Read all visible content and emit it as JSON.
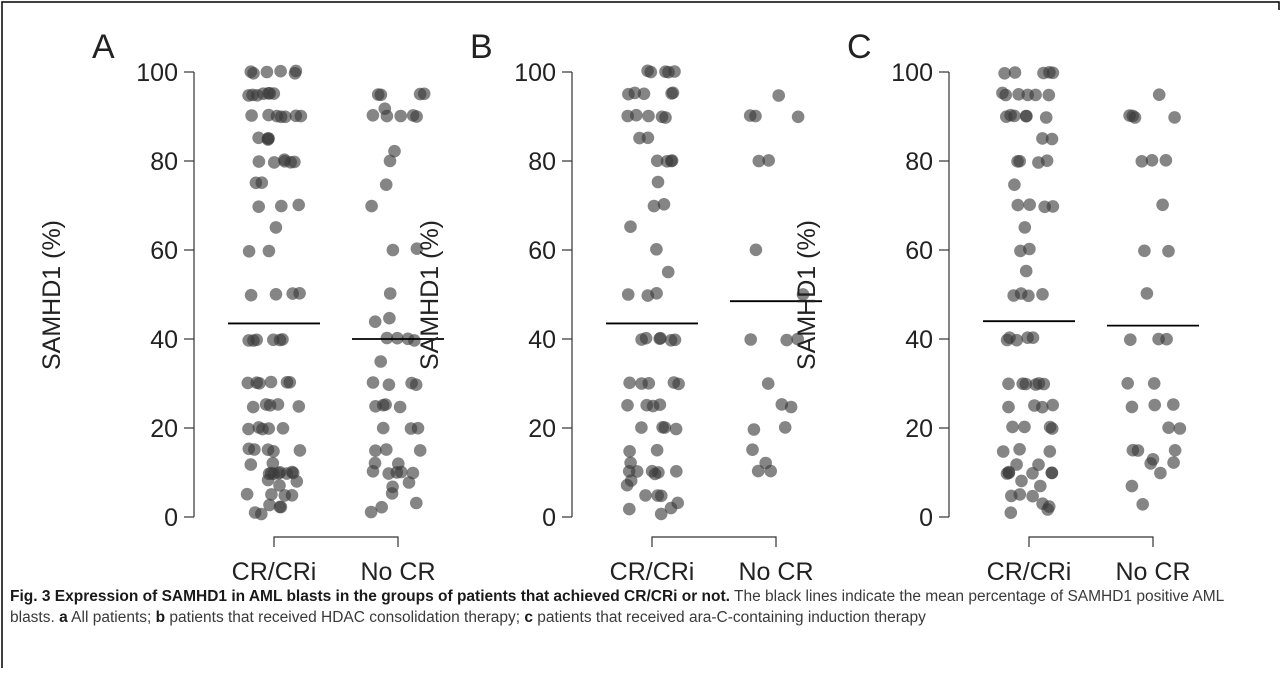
{
  "chart_data": [
    {
      "type": "scatter",
      "panel_label": "A",
      "ylabel": "SAMHD1 (%)",
      "ylim": [
        0,
        100
      ],
      "yticks": [
        "0",
        "20",
        "40",
        "60",
        "80",
        "100"
      ],
      "categories": [
        "CR/CRi",
        "No CR"
      ],
      "means": [
        43.5,
        40
      ],
      "series": [
        {
          "category": "CR/CRi",
          "values": [
            100,
            100,
            100,
            100,
            100,
            100,
            95,
            95,
            95,
            95,
            95,
            95,
            95,
            90,
            90,
            90,
            90,
            90,
            90,
            90,
            85,
            85,
            85,
            85,
            80,
            80,
            80,
            80,
            80,
            80,
            75,
            75,
            70,
            70,
            70,
            65,
            60,
            60,
            50,
            50,
            50,
            50,
            40,
            40,
            40,
            40,
            40,
            40,
            30,
            30,
            30,
            30,
            30,
            30,
            25,
            25,
            25,
            25,
            25,
            20,
            20,
            20,
            20,
            20,
            15,
            15,
            15,
            15,
            15,
            12,
            12,
            10,
            10,
            10,
            10,
            10,
            10,
            10,
            10,
            8,
            8,
            7,
            5,
            5,
            5,
            5,
            3,
            2,
            2,
            1,
            1
          ]
        },
        {
          "category": "No CR",
          "values": [
            95,
            95,
            95,
            95,
            92,
            90,
            90,
            90,
            90,
            90,
            82,
            80,
            75,
            70,
            60,
            60,
            50,
            45,
            44,
            40,
            40,
            40,
            40,
            35,
            30,
            30,
            30,
            30,
            25,
            25,
            25,
            25,
            20,
            20,
            20,
            15,
            15,
            15,
            12,
            12,
            10,
            10,
            10,
            10,
            10,
            8,
            7,
            5,
            3,
            2,
            1
          ]
        }
      ]
    },
    {
      "type": "scatter",
      "panel_label": "B",
      "ylabel": "SAMHD1 (%)",
      "ylim": [
        0,
        100
      ],
      "yticks": [
        "0",
        "20",
        "40",
        "60",
        "80",
        "100"
      ],
      "categories": [
        "CR/CRi",
        "No CR"
      ],
      "means": [
        43.5,
        48.5
      ],
      "series": [
        {
          "category": "CR/CRi",
          "values": [
            100,
            100,
            100,
            100,
            100,
            95,
            95,
            95,
            95,
            95,
            90,
            90,
            90,
            90,
            90,
            85,
            85,
            80,
            80,
            80,
            80,
            75,
            70,
            70,
            65,
            60,
            55,
            50,
            50,
            50,
            40,
            40,
            40,
            40,
            40,
            40,
            30,
            30,
            30,
            30,
            30,
            25,
            25,
            25,
            25,
            20,
            20,
            20,
            20,
            15,
            15,
            12,
            10,
            10,
            10,
            10,
            10,
            10,
            8,
            7,
            5,
            5,
            5,
            3,
            2,
            2,
            1
          ]
        },
        {
          "category": "No CR",
          "values": [
            95,
            90,
            90,
            90,
            80,
            80,
            60,
            50,
            40,
            40,
            40,
            30,
            25,
            25,
            20,
            20,
            15,
            12,
            10,
            10
          ]
        }
      ]
    },
    {
      "type": "scatter",
      "panel_label": "C",
      "ylabel": "SAMHD1 (%)",
      "ylim": [
        0,
        100
      ],
      "yticks": [
        "0",
        "20",
        "40",
        "60",
        "80",
        "100"
      ],
      "categories": [
        "CR/CRi",
        "No CR"
      ],
      "means": [
        44,
        43
      ],
      "series": [
        {
          "category": "CR/CRi",
          "values": [
            100,
            100,
            100,
            100,
            100,
            95,
            95,
            95,
            95,
            95,
            95,
            90,
            90,
            90,
            90,
            90,
            90,
            85,
            85,
            80,
            80,
            80,
            80,
            75,
            70,
            70,
            70,
            70,
            65,
            60,
            60,
            55,
            50,
            50,
            50,
            50,
            40,
            40,
            40,
            40,
            40,
            30,
            30,
            30,
            30,
            30,
            30,
            25,
            25,
            25,
            25,
            20,
            20,
            20,
            20,
            15,
            15,
            15,
            12,
            12,
            10,
            10,
            10,
            10,
            10,
            10,
            8,
            7,
            5,
            5,
            5,
            3,
            2,
            2,
            1
          ]
        },
        {
          "category": "No CR",
          "values": [
            95,
            90,
            90,
            90,
            90,
            80,
            80,
            80,
            70,
            60,
            60,
            50,
            40,
            40,
            40,
            30,
            30,
            25,
            25,
            25,
            20,
            20,
            15,
            15,
            15,
            13,
            12,
            12,
            10,
            7,
            3
          ]
        }
      ]
    }
  ],
  "caption": {
    "title": "Fig. 3 Expression of SAMHD1 in AML blasts in the groups of patients that achieved CR/CRi or not.",
    "body_1": " The black lines indicate the mean percentage of SAMHD1 positive AML blasts. ",
    "a_label": "a",
    "a_text": " All patients; ",
    "b_label": "b",
    "b_text": " patients that received HDAC consolidation therapy; ",
    "c_label": "c",
    "c_text": " patients that received ara-C-containing induction therapy"
  },
  "colors": {
    "frame": "#000000",
    "dot": "#3a3a3a",
    "text": "#222222"
  }
}
